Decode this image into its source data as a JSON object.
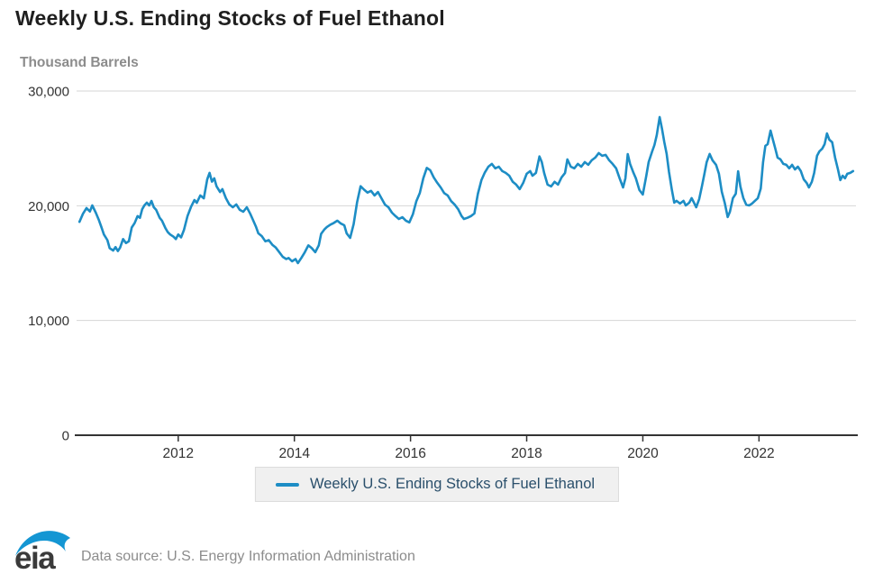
{
  "header": {
    "title": "Weekly U.S. Ending Stocks of Fuel Ethanol",
    "units": "Thousand Barrels"
  },
  "legend": {
    "label": "Weekly U.S. Ending Stocks of Fuel Ethanol"
  },
  "footer": {
    "logo_text": "eia",
    "source": "Data source: U.S. Energy Information Administration"
  },
  "colors": {
    "line": "#1d8dc5",
    "grid": "#d6d6d6",
    "axis": "#333333",
    "tick_label": "#333333",
    "logo_blue": "#1496d3",
    "logo_text": "#3a3a3a"
  },
  "chart_data": {
    "type": "line",
    "title": "Weekly U.S. Ending Stocks of Fuel Ethanol",
    "ylabel": "Thousand Barrels",
    "xlabel": "",
    "grid": "horizontal",
    "legend_position": "bottom",
    "series_name": "Weekly U.S. Ending Stocks of Fuel Ethanol",
    "xlim": [
      2010.25,
      2023.67
    ],
    "ylim": [
      0,
      30000
    ],
    "yticks": [
      {
        "v": 0,
        "label": "0"
      },
      {
        "v": 10000,
        "label": "10,000"
      },
      {
        "v": 20000,
        "label": "20,000"
      },
      {
        "v": 30000,
        "label": "30,000"
      }
    ],
    "xticks": [
      {
        "v": 2012,
        "label": "2012"
      },
      {
        "v": 2014,
        "label": "2014"
      },
      {
        "v": 2016,
        "label": "2016"
      },
      {
        "v": 2018,
        "label": "2018"
      },
      {
        "v": 2020,
        "label": "2020"
      },
      {
        "v": 2022,
        "label": "2022"
      }
    ],
    "points": [
      [
        2010.3,
        18600
      ],
      [
        2010.36,
        19300
      ],
      [
        2010.42,
        19800
      ],
      [
        2010.48,
        19500
      ],
      [
        2010.52,
        20030
      ],
      [
        2010.58,
        19400
      ],
      [
        2010.63,
        18800
      ],
      [
        2010.68,
        18100
      ],
      [
        2010.72,
        17500
      ],
      [
        2010.78,
        17000
      ],
      [
        2010.82,
        16300
      ],
      [
        2010.88,
        16100
      ],
      [
        2010.92,
        16400
      ],
      [
        2010.96,
        16050
      ],
      [
        2011.0,
        16350
      ],
      [
        2011.05,
        17100
      ],
      [
        2011.1,
        16750
      ],
      [
        2011.15,
        16900
      ],
      [
        2011.2,
        18100
      ],
      [
        2011.25,
        18500
      ],
      [
        2011.3,
        19100
      ],
      [
        2011.34,
        18950
      ],
      [
        2011.38,
        19700
      ],
      [
        2011.42,
        20050
      ],
      [
        2011.46,
        20270
      ],
      [
        2011.5,
        20030
      ],
      [
        2011.54,
        20420
      ],
      [
        2011.58,
        19870
      ],
      [
        2011.62,
        19640
      ],
      [
        2011.68,
        18950
      ],
      [
        2011.72,
        18700
      ],
      [
        2011.78,
        18050
      ],
      [
        2011.82,
        17700
      ],
      [
        2011.86,
        17500
      ],
      [
        2011.92,
        17300
      ],
      [
        2011.96,
        17100
      ],
      [
        2012.0,
        17500
      ],
      [
        2012.05,
        17250
      ],
      [
        2012.1,
        17900
      ],
      [
        2012.16,
        19100
      ],
      [
        2012.22,
        19900
      ],
      [
        2012.28,
        20500
      ],
      [
        2012.32,
        20250
      ],
      [
        2012.38,
        20900
      ],
      [
        2012.44,
        20650
      ],
      [
        2012.5,
        22300
      ],
      [
        2012.54,
        22870
      ],
      [
        2012.58,
        22100
      ],
      [
        2012.62,
        22390
      ],
      [
        2012.66,
        21700
      ],
      [
        2012.72,
        21200
      ],
      [
        2012.76,
        21450
      ],
      [
        2012.82,
        20660
      ],
      [
        2012.88,
        20110
      ],
      [
        2012.94,
        19870
      ],
      [
        2013.0,
        20110
      ],
      [
        2013.06,
        19640
      ],
      [
        2013.12,
        19480
      ],
      [
        2013.18,
        19870
      ],
      [
        2013.24,
        19300
      ],
      [
        2013.28,
        18850
      ],
      [
        2013.34,
        18150
      ],
      [
        2013.38,
        17600
      ],
      [
        2013.44,
        17350
      ],
      [
        2013.5,
        16900
      ],
      [
        2013.56,
        17000
      ],
      [
        2013.62,
        16600
      ],
      [
        2013.68,
        16350
      ],
      [
        2013.74,
        15950
      ],
      [
        2013.8,
        15550
      ],
      [
        2013.86,
        15350
      ],
      [
        2013.9,
        15450
      ],
      [
        2013.96,
        15160
      ],
      [
        2014.02,
        15350
      ],
      [
        2014.06,
        15000
      ],
      [
        2014.12,
        15450
      ],
      [
        2014.18,
        15950
      ],
      [
        2014.24,
        16550
      ],
      [
        2014.3,
        16300
      ],
      [
        2014.36,
        15950
      ],
      [
        2014.42,
        16550
      ],
      [
        2014.46,
        17550
      ],
      [
        2014.52,
        17950
      ],
      [
        2014.56,
        18150
      ],
      [
        2014.62,
        18350
      ],
      [
        2014.68,
        18500
      ],
      [
        2014.74,
        18700
      ],
      [
        2014.8,
        18450
      ],
      [
        2014.86,
        18300
      ],
      [
        2014.9,
        17600
      ],
      [
        2014.96,
        17200
      ],
      [
        2015.02,
        18400
      ],
      [
        2015.08,
        20300
      ],
      [
        2015.14,
        21700
      ],
      [
        2015.2,
        21400
      ],
      [
        2015.26,
        21150
      ],
      [
        2015.32,
        21300
      ],
      [
        2015.38,
        20900
      ],
      [
        2015.44,
        21200
      ],
      [
        2015.5,
        20650
      ],
      [
        2015.56,
        20100
      ],
      [
        2015.62,
        19870
      ],
      [
        2015.68,
        19400
      ],
      [
        2015.74,
        19100
      ],
      [
        2015.8,
        18850
      ],
      [
        2015.86,
        19000
      ],
      [
        2015.92,
        18700
      ],
      [
        2015.98,
        18550
      ],
      [
        2016.04,
        19250
      ],
      [
        2016.1,
        20400
      ],
      [
        2016.16,
        21100
      ],
      [
        2016.22,
        22400
      ],
      [
        2016.28,
        23300
      ],
      [
        2016.34,
        23100
      ],
      [
        2016.4,
        22470
      ],
      [
        2016.46,
        22000
      ],
      [
        2016.52,
        21600
      ],
      [
        2016.58,
        21100
      ],
      [
        2016.64,
        20900
      ],
      [
        2016.7,
        20400
      ],
      [
        2016.76,
        20100
      ],
      [
        2016.82,
        19700
      ],
      [
        2016.88,
        19100
      ],
      [
        2016.92,
        18850
      ],
      [
        2016.98,
        18950
      ],
      [
        2017.04,
        19100
      ],
      [
        2017.1,
        19330
      ],
      [
        2017.16,
        21050
      ],
      [
        2017.22,
        22230
      ],
      [
        2017.28,
        22900
      ],
      [
        2017.34,
        23400
      ],
      [
        2017.4,
        23650
      ],
      [
        2017.46,
        23260
      ],
      [
        2017.52,
        23400
      ],
      [
        2017.58,
        23020
      ],
      [
        2017.64,
        22860
      ],
      [
        2017.7,
        22620
      ],
      [
        2017.76,
        22080
      ],
      [
        2017.82,
        21840
      ],
      [
        2017.88,
        21450
      ],
      [
        2017.94,
        22000
      ],
      [
        2018.0,
        22780
      ],
      [
        2018.06,
        23020
      ],
      [
        2018.1,
        22620
      ],
      [
        2018.16,
        22860
      ],
      [
        2018.22,
        24300
      ],
      [
        2018.26,
        23800
      ],
      [
        2018.3,
        22860
      ],
      [
        2018.36,
        21840
      ],
      [
        2018.42,
        21680
      ],
      [
        2018.48,
        22080
      ],
      [
        2018.54,
        21840
      ],
      [
        2018.6,
        22470
      ],
      [
        2018.66,
        22860
      ],
      [
        2018.7,
        24040
      ],
      [
        2018.76,
        23400
      ],
      [
        2018.82,
        23260
      ],
      [
        2018.88,
        23650
      ],
      [
        2018.94,
        23400
      ],
      [
        2019.0,
        23800
      ],
      [
        2019.06,
        23570
      ],
      [
        2019.12,
        23960
      ],
      [
        2019.18,
        24200
      ],
      [
        2019.24,
        24590
      ],
      [
        2019.3,
        24350
      ],
      [
        2019.36,
        24430
      ],
      [
        2019.42,
        23960
      ],
      [
        2019.48,
        23650
      ],
      [
        2019.54,
        23260
      ],
      [
        2019.6,
        22390
      ],
      [
        2019.66,
        21600
      ],
      [
        2019.7,
        22390
      ],
      [
        2019.74,
        24500
      ],
      [
        2019.78,
        23650
      ],
      [
        2019.84,
        22860
      ],
      [
        2019.88,
        22390
      ],
      [
        2019.94,
        21370
      ],
      [
        2020.0,
        20980
      ],
      [
        2020.06,
        22620
      ],
      [
        2020.1,
        23800
      ],
      [
        2020.16,
        24740
      ],
      [
        2020.2,
        25290
      ],
      [
        2020.24,
        26160
      ],
      [
        2020.29,
        27730
      ],
      [
        2020.33,
        26710
      ],
      [
        2020.37,
        25530
      ],
      [
        2020.41,
        24510
      ],
      [
        2020.45,
        22940
      ],
      [
        2020.5,
        21370
      ],
      [
        2020.54,
        20270
      ],
      [
        2020.58,
        20430
      ],
      [
        2020.64,
        20190
      ],
      [
        2020.7,
        20430
      ],
      [
        2020.74,
        20030
      ],
      [
        2020.8,
        20270
      ],
      [
        2020.84,
        20660
      ],
      [
        2020.88,
        20270
      ],
      [
        2020.92,
        19870
      ],
      [
        2020.97,
        20580
      ],
      [
        2021.02,
        21760
      ],
      [
        2021.06,
        22780
      ],
      [
        2021.1,
        23800
      ],
      [
        2021.15,
        24510
      ],
      [
        2021.2,
        23960
      ],
      [
        2021.26,
        23570
      ],
      [
        2021.31,
        22780
      ],
      [
        2021.36,
        21210
      ],
      [
        2021.41,
        20270
      ],
      [
        2021.46,
        19010
      ],
      [
        2021.5,
        19480
      ],
      [
        2021.55,
        20660
      ],
      [
        2021.6,
        21050
      ],
      [
        2021.64,
        23000
      ],
      [
        2021.68,
        21680
      ],
      [
        2021.73,
        20660
      ],
      [
        2021.78,
        20100
      ],
      [
        2021.83,
        20030
      ],
      [
        2021.88,
        20190
      ],
      [
        2021.93,
        20430
      ],
      [
        2021.98,
        20660
      ],
      [
        2022.03,
        21500
      ],
      [
        2022.07,
        23800
      ],
      [
        2022.11,
        25220
      ],
      [
        2022.15,
        25370
      ],
      [
        2022.2,
        26550
      ],
      [
        2022.24,
        25760
      ],
      [
        2022.28,
        25000
      ],
      [
        2022.32,
        24200
      ],
      [
        2022.37,
        24040
      ],
      [
        2022.42,
        23650
      ],
      [
        2022.47,
        23570
      ],
      [
        2022.52,
        23260
      ],
      [
        2022.57,
        23570
      ],
      [
        2022.62,
        23170
      ],
      [
        2022.67,
        23400
      ],
      [
        2022.72,
        23020
      ],
      [
        2022.77,
        22300
      ],
      [
        2022.82,
        22000
      ],
      [
        2022.86,
        21600
      ],
      [
        2022.91,
        22080
      ],
      [
        2022.95,
        22860
      ],
      [
        2023.0,
        24350
      ],
      [
        2023.04,
        24740
      ],
      [
        2023.09,
        24980
      ],
      [
        2023.13,
        25370
      ],
      [
        2023.17,
        26300
      ],
      [
        2023.21,
        25760
      ],
      [
        2023.26,
        25530
      ],
      [
        2023.31,
        24200
      ],
      [
        2023.36,
        23170
      ],
      [
        2023.4,
        22230
      ],
      [
        2023.44,
        22620
      ],
      [
        2023.48,
        22390
      ],
      [
        2023.52,
        22780
      ],
      [
        2023.57,
        22860
      ],
      [
        2023.62,
        23020
      ]
    ]
  }
}
